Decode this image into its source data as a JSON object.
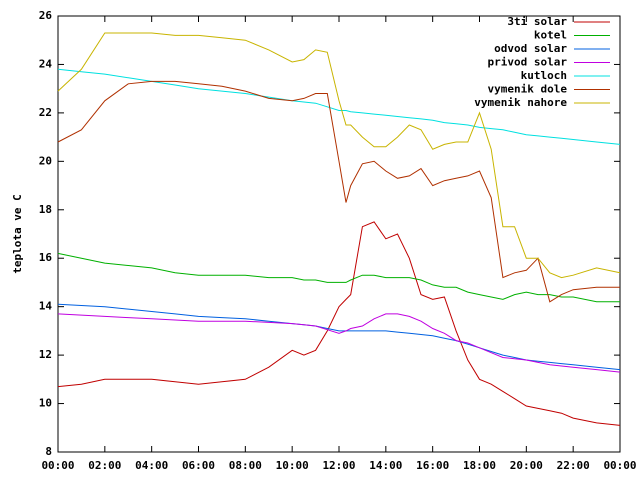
{
  "chart_data": {
    "type": "line",
    "ylabel": "teplota ve C",
    "x": [
      0,
      1,
      2,
      3,
      4,
      5,
      6,
      7,
      8,
      9,
      10,
      10.5,
      11,
      11.5,
      12,
      12.3,
      12.5,
      13,
      13.5,
      14,
      14.5,
      15,
      15.5,
      16,
      16.5,
      17,
      17.5,
      18,
      18.5,
      19,
      19.5,
      20,
      20.5,
      21,
      21.5,
      22,
      23,
      24
    ],
    "xlim": [
      0,
      24
    ],
    "xticks": [
      {
        "value": 0,
        "label": "00:00"
      },
      {
        "value": 2,
        "label": "02:00"
      },
      {
        "value": 4,
        "label": "04:00"
      },
      {
        "value": 6,
        "label": "06:00"
      },
      {
        "value": 8,
        "label": "08:00"
      },
      {
        "value": 10,
        "label": "10:00"
      },
      {
        "value": 12,
        "label": "12:00"
      },
      {
        "value": 14,
        "label": "14:00"
      },
      {
        "value": 16,
        "label": "16:00"
      },
      {
        "value": 18,
        "label": "18:00"
      },
      {
        "value": 20,
        "label": "20:00"
      },
      {
        "value": 22,
        "label": "22:00"
      },
      {
        "value": 24,
        "label": "00:00"
      }
    ],
    "ylim": [
      8,
      26
    ],
    "yticks": [
      8,
      10,
      12,
      14,
      16,
      18,
      20,
      22,
      24,
      26
    ],
    "legend": "top-right",
    "series": [
      {
        "name": "3ti solar",
        "color": "#c00000",
        "values": [
          10.7,
          10.8,
          11.0,
          11.0,
          11.0,
          10.9,
          10.8,
          10.9,
          11.0,
          11.5,
          12.2,
          12.0,
          12.2,
          13.0,
          14.0,
          14.3,
          14.5,
          17.3,
          17.5,
          16.8,
          17.0,
          16.0,
          14.5,
          14.3,
          14.4,
          13.0,
          11.8,
          11.0,
          10.8,
          10.5,
          10.2,
          9.9,
          9.8,
          9.7,
          9.6,
          9.4,
          9.2,
          9.1
        ]
      },
      {
        "name": "kotel",
        "color": "#00b000",
        "values": [
          16.2,
          16.0,
          15.8,
          15.7,
          15.6,
          15.4,
          15.3,
          15.3,
          15.3,
          15.2,
          15.2,
          15.1,
          15.1,
          15.0,
          15.0,
          15.0,
          15.1,
          15.3,
          15.3,
          15.2,
          15.2,
          15.2,
          15.1,
          14.9,
          14.8,
          14.8,
          14.6,
          14.5,
          14.4,
          14.3,
          14.5,
          14.6,
          14.5,
          14.5,
          14.4,
          14.4,
          14.2,
          14.2
        ]
      },
      {
        "name": "odvod solar",
        "color": "#0060e0",
        "values": [
          14.1,
          14.05,
          14.0,
          13.9,
          13.8,
          13.7,
          13.6,
          13.55,
          13.5,
          13.4,
          13.3,
          13.25,
          13.2,
          13.1,
          13.0,
          13.0,
          13.0,
          13.0,
          13.0,
          13.0,
          12.95,
          12.9,
          12.85,
          12.8,
          12.7,
          12.6,
          12.45,
          12.3,
          12.15,
          12.0,
          11.9,
          11.8,
          11.75,
          11.7,
          11.65,
          11.6,
          11.5,
          11.4
        ]
      },
      {
        "name": "privod solar",
        "color": "#c000e0",
        "values": [
          13.7,
          13.65,
          13.6,
          13.55,
          13.5,
          13.45,
          13.4,
          13.4,
          13.4,
          13.35,
          13.3,
          13.25,
          13.2,
          13.05,
          12.9,
          13.0,
          13.1,
          13.2,
          13.5,
          13.7,
          13.7,
          13.6,
          13.4,
          13.1,
          12.9,
          12.6,
          12.5,
          12.3,
          12.1,
          11.9,
          11.85,
          11.8,
          11.7,
          11.6,
          11.55,
          11.5,
          11.4,
          11.3
        ]
      },
      {
        "name": "kutloch",
        "color": "#00e0e0",
        "values": [
          23.8,
          23.7,
          23.6,
          23.45,
          23.3,
          23.15,
          23.0,
          22.9,
          22.8,
          22.65,
          22.5,
          22.45,
          22.4,
          22.25,
          22.1,
          22.1,
          22.05,
          22.0,
          21.95,
          21.9,
          21.85,
          21.8,
          21.75,
          21.7,
          21.6,
          21.55,
          21.5,
          21.4,
          21.35,
          21.3,
          21.2,
          21.1,
          21.05,
          21.0,
          20.95,
          20.9,
          20.8,
          20.7
        ]
      },
      {
        "name": "vymenik dole",
        "color": "#b03000",
        "values": [
          20.8,
          21.3,
          22.5,
          23.2,
          23.3,
          23.3,
          23.2,
          23.1,
          22.9,
          22.6,
          22.5,
          22.6,
          22.8,
          22.8,
          20.0,
          18.3,
          19.0,
          19.9,
          20.0,
          19.6,
          19.3,
          19.4,
          19.7,
          19.0,
          19.2,
          19.3,
          19.4,
          19.6,
          18.5,
          15.2,
          15.4,
          15.5,
          16.0,
          14.2,
          14.5,
          14.7,
          14.8,
          14.8
        ]
      },
      {
        "name": "vymenik nahore",
        "color": "#c8b400",
        "values": [
          22.9,
          23.8,
          25.3,
          25.3,
          25.3,
          25.2,
          25.2,
          25.1,
          25.0,
          24.6,
          24.1,
          24.2,
          24.6,
          24.5,
          22.5,
          21.5,
          21.5,
          21.0,
          20.6,
          20.6,
          21.0,
          21.5,
          21.3,
          20.5,
          20.7,
          20.8,
          20.8,
          22.0,
          20.5,
          17.3,
          17.3,
          16.0,
          16.0,
          15.4,
          15.2,
          15.3,
          15.6,
          15.4
        ]
      }
    ]
  }
}
